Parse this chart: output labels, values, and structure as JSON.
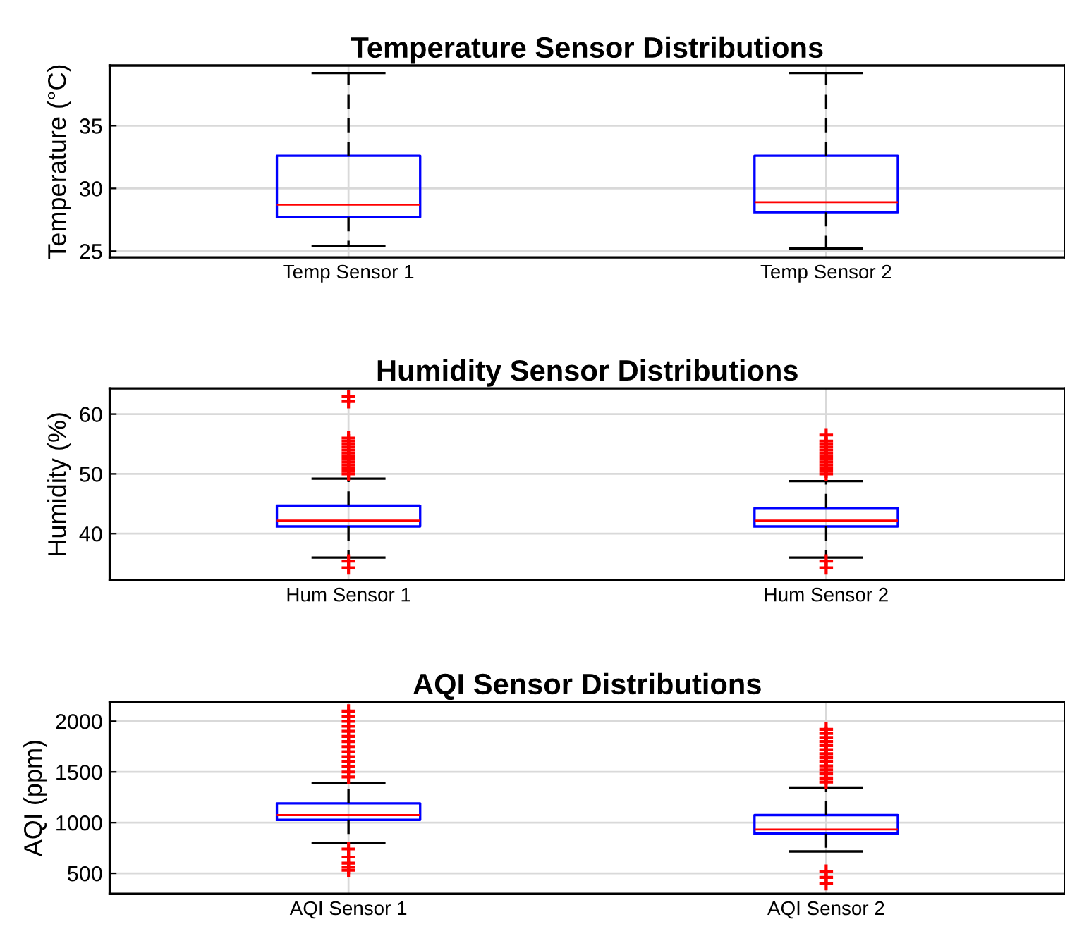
{
  "chart_data": [
    {
      "type": "box",
      "title": "Temperature Sensor Distributions",
      "ylabel": "Temperature (°C)",
      "categories": [
        "Temp Sensor 1",
        "Temp Sensor 2"
      ],
      "ylim": [
        24.5,
        39.8
      ],
      "yticks": [
        25,
        30,
        35
      ],
      "grid": true,
      "marker": "cross",
      "boxes": [
        {
          "low": 25.4,
          "q1": 27.7,
          "median": 28.7,
          "q3": 32.6,
          "high": 39.2
        },
        {
          "low": 25.2,
          "q1": 28.1,
          "median": 28.9,
          "q3": 32.6,
          "high": 39.2
        }
      ]
    },
    {
      "type": "box",
      "title": "Humidity Sensor Distributions",
      "ylabel": "Humidity (%)",
      "categories": [
        "Hum Sensor 1",
        "Hum Sensor 2"
      ],
      "ylim": [
        32.2,
        64.3
      ],
      "yticks": [
        40,
        50,
        60
      ],
      "grid": true,
      "marker": "cross",
      "boxes": [
        {
          "low": 36.0,
          "q1": 41.2,
          "median": 42.2,
          "q3": 44.7,
          "high": 49.2,
          "outliers": [
            62.9,
            62.1,
            56.0,
            55.5,
            55.0,
            54.5,
            54.0,
            53.5,
            53.0,
            52.5,
            52.0,
            51.5,
            51.0,
            50.5,
            50.0,
            35.4,
            34.3
          ]
        },
        {
          "low": 36.0,
          "q1": 41.2,
          "median": 42.2,
          "q3": 44.3,
          "high": 48.8,
          "outliers": [
            56.5,
            55.5,
            55.0,
            54.5,
            54.0,
            53.5,
            53.0,
            52.5,
            52.0,
            51.5,
            51.0,
            50.5,
            50.0,
            35.4,
            34.3
          ]
        }
      ]
    },
    {
      "type": "box",
      "title": "AQI Sensor Distributions",
      "ylabel": "AQI (ppm)",
      "categories": [
        "AQI Sensor 1",
        "AQI Sensor 2"
      ],
      "ylim": [
        297,
        2190
      ],
      "yticks": [
        500,
        1000,
        1500,
        2000
      ],
      "grid": true,
      "marker": "cross",
      "boxes": [
        {
          "low": 797,
          "q1": 1027,
          "median": 1074,
          "q3": 1189,
          "high": 1392,
          "outliers": [
            2100,
            2050,
            2000,
            1950,
            1900,
            1850,
            1800,
            1750,
            1700,
            1650,
            1600,
            1550,
            1500,
            1450,
            740,
            660,
            600,
            560,
            530
          ]
        },
        {
          "low": 716,
          "q1": 892,
          "median": 933,
          "q3": 1074,
          "high": 1345,
          "outliers": [
            1920,
            1880,
            1840,
            1800,
            1760,
            1720,
            1680,
            1640,
            1600,
            1560,
            1520,
            1480,
            1440,
            1400,
            520,
            460,
            400
          ]
        }
      ]
    }
  ]
}
